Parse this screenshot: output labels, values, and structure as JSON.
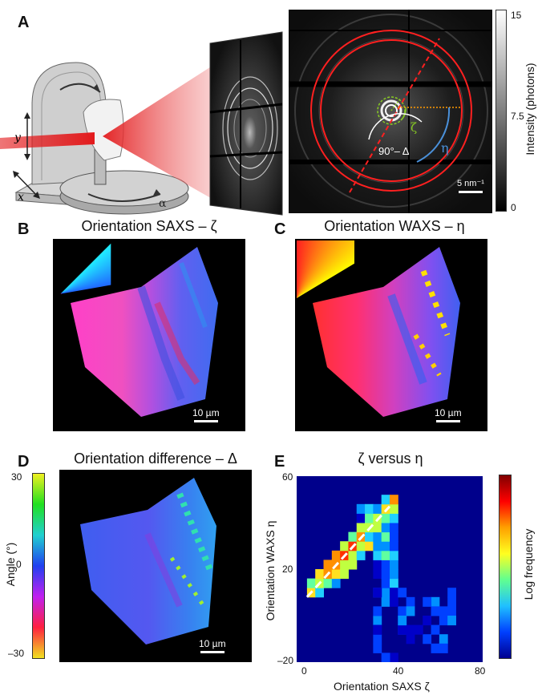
{
  "panels": {
    "a": {
      "letter": "A",
      "colorbar_max": "15",
      "colorbar_mid": "7.5",
      "colorbar_min": "0",
      "colorbar_label": "Intensity (photons)",
      "scalebar": "5 nm⁻¹",
      "label_angle": "90°– Δ",
      "label_zeta": "ζ",
      "label_eta": "η",
      "label_beta": "β",
      "label_alpha": "α",
      "label_x": "x",
      "label_y": "y"
    },
    "b": {
      "letter": "B",
      "title": "Orientation SAXS – ζ",
      "scalebar": "10 µm"
    },
    "c": {
      "letter": "C",
      "title": "Orientation WAXS – η",
      "scalebar": "10 µm"
    },
    "d": {
      "letter": "D",
      "title": "Orientation difference – Δ",
      "scalebar": "10 µm",
      "colorbar_label": "Angle (°)",
      "ticks": [
        "30",
        "0",
        "–30"
      ]
    },
    "e": {
      "letter": "E",
      "title": "ζ versus η",
      "colorbar_label": "Log frequency"
    }
  },
  "chart_data": {
    "type": "heatmap",
    "title": "ζ versus η",
    "xlabel": "Orientation SAXS ζ",
    "ylabel": "Orientation WAXS η",
    "xlim": [
      -5,
      85
    ],
    "ylim": [
      -20,
      60
    ],
    "xticks": [
      "0",
      "40",
      "80"
    ],
    "yticks": [
      "60",
      "20",
      "–20"
    ],
    "colorbar_label": "Log frequency",
    "fit_line": {
      "x": [
        0,
        40
      ],
      "y": [
        8,
        47
      ]
    },
    "colors": {
      "background": "#00008b",
      "max": "#800000"
    }
  }
}
